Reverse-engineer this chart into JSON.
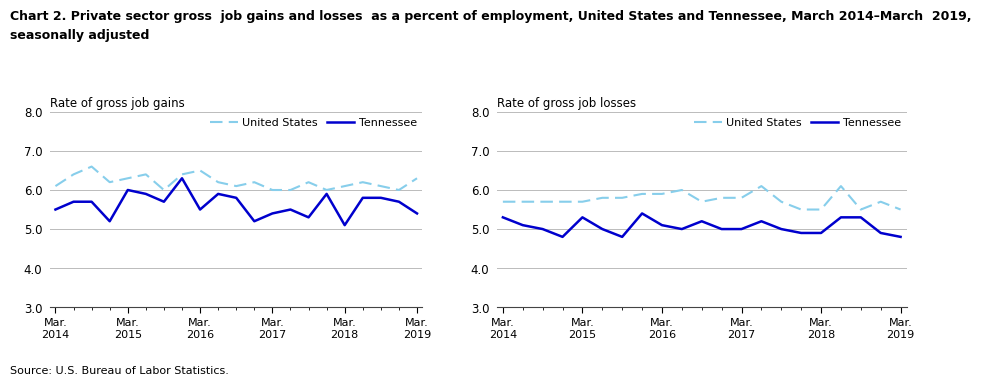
{
  "title_line1": "Chart 2. Private sector gross  job gains and losses  as a percent of employment, United States and Tennessee, March 2014–March  2019,",
  "title_line2": "seasonally adjusted",
  "title_fontsize": 9.0,
  "left_ylabel": "Rate of gross job gains",
  "right_ylabel": "Rate of gross job losses",
  "source": "Source: U.S. Bureau of Labor Statistics.",
  "x_tick_labels": [
    "Mar.\n2014",
    "Mar.\n2015",
    "Mar.\n2016",
    "Mar.\n2017",
    "Mar.\n2018",
    "Mar.\n2019"
  ],
  "ylim": [
    3.0,
    8.0
  ],
  "yticks": [
    3.0,
    4.0,
    5.0,
    6.0,
    7.0,
    8.0
  ],
  "us_color": "#87CEEB",
  "tn_color": "#0000CD",
  "gains_us": [
    6.1,
    6.4,
    6.6,
    6.2,
    6.3,
    6.4,
    6.0,
    6.4,
    6.5,
    6.2,
    6.1,
    6.2,
    6.0,
    6.0,
    6.2,
    6.0,
    6.1,
    6.2,
    6.1,
    6.0,
    6.3
  ],
  "gains_tn": [
    5.5,
    5.7,
    5.7,
    5.2,
    6.0,
    5.9,
    5.7,
    6.3,
    5.5,
    5.9,
    5.8,
    5.2,
    5.4,
    5.5,
    5.3,
    5.9,
    5.1,
    5.8,
    5.8,
    5.7,
    5.4
  ],
  "losses_us": [
    5.7,
    5.7,
    5.7,
    5.7,
    5.7,
    5.8,
    5.8,
    5.9,
    5.9,
    6.0,
    5.7,
    5.8,
    5.8,
    6.1,
    5.7,
    5.5,
    5.5,
    6.1,
    5.5,
    5.7,
    5.5
  ],
  "losses_tn": [
    5.3,
    5.1,
    5.0,
    4.8,
    5.3,
    5.0,
    4.8,
    5.4,
    5.1,
    5.0,
    5.2,
    5.0,
    5.0,
    5.2,
    5.0,
    4.9,
    4.9,
    5.3,
    5.3,
    4.9,
    4.8
  ],
  "n_points": 21,
  "legend_us_label": "United States",
  "legend_tn_label": "Tennessee"
}
